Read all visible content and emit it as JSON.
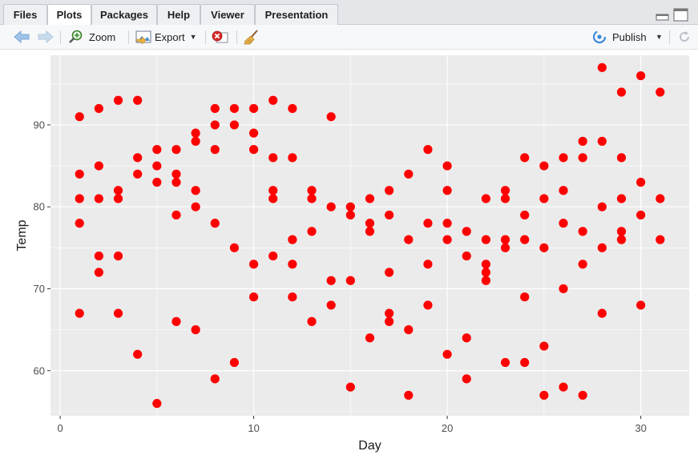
{
  "tabs": [
    {
      "label": "Files"
    },
    {
      "label": "Plots"
    },
    {
      "label": "Packages"
    },
    {
      "label": "Help"
    },
    {
      "label": "Viewer"
    },
    {
      "label": "Presentation"
    }
  ],
  "active_tab": "Plots",
  "toolbar": {
    "zoom_label": "Zoom",
    "export_label": "Export",
    "publish_label": "Publish"
  },
  "colors": {
    "point": "#ff0000",
    "panel": "#ebebeb",
    "grid": "#ffffff",
    "text": "#1a1a1a",
    "tick_text": "#4d4d4d"
  },
  "chart_data": {
    "type": "scatter",
    "xlabel": "Day",
    "ylabel": "Temp",
    "xlim": [
      -0.5,
      32.5
    ],
    "ylim": [
      54.5,
      98.5
    ],
    "x_ticks": [
      0,
      10,
      20,
      30
    ],
    "y_ticks": [
      60,
      70,
      80,
      90
    ],
    "grid": true,
    "legend": "none",
    "points": [
      [
        1,
        91
      ],
      [
        1,
        84
      ],
      [
        1,
        81
      ],
      [
        1,
        78
      ],
      [
        1,
        67
      ],
      [
        2,
        92
      ],
      [
        2,
        85
      ],
      [
        2,
        81
      ],
      [
        2,
        74
      ],
      [
        2,
        72
      ],
      [
        3,
        93
      ],
      [
        3,
        82
      ],
      [
        3,
        81
      ],
      [
        3,
        74
      ],
      [
        3,
        67
      ],
      [
        4,
        93
      ],
      [
        4,
        86
      ],
      [
        4,
        84
      ],
      [
        4,
        62
      ],
      [
        5,
        87
      ],
      [
        5,
        85
      ],
      [
        5,
        83
      ],
      [
        5,
        56
      ],
      [
        6,
        87
      ],
      [
        6,
        84
      ],
      [
        6,
        83
      ],
      [
        6,
        79
      ],
      [
        6,
        66
      ],
      [
        7,
        89
      ],
      [
        7,
        88
      ],
      [
        7,
        82
      ],
      [
        7,
        80
      ],
      [
        7,
        65
      ],
      [
        8,
        92
      ],
      [
        8,
        90
      ],
      [
        8,
        87
      ],
      [
        8,
        78
      ],
      [
        8,
        59
      ],
      [
        9,
        92
      ],
      [
        9,
        90
      ],
      [
        9,
        75
      ],
      [
        9,
        61
      ],
      [
        10,
        92
      ],
      [
        10,
        89
      ],
      [
        10,
        87
      ],
      [
        10,
        73
      ],
      [
        10,
        69
      ],
      [
        11,
        93
      ],
      [
        11,
        86
      ],
      [
        11,
        82
      ],
      [
        11,
        81
      ],
      [
        11,
        74
      ],
      [
        12,
        92
      ],
      [
        12,
        86
      ],
      [
        12,
        76
      ],
      [
        12,
        73
      ],
      [
        12,
        69
      ],
      [
        13,
        82
      ],
      [
        13,
        81
      ],
      [
        13,
        77
      ],
      [
        13,
        66
      ],
      [
        14,
        91
      ],
      [
        14,
        80
      ],
      [
        14,
        71
      ],
      [
        14,
        68
      ],
      [
        15,
        80
      ],
      [
        15,
        79
      ],
      [
        15,
        71
      ],
      [
        15,
        58
      ],
      [
        16,
        81
      ],
      [
        16,
        78
      ],
      [
        16,
        77
      ],
      [
        16,
        64
      ],
      [
        17,
        82
      ],
      [
        17,
        79
      ],
      [
        17,
        72
      ],
      [
        17,
        67
      ],
      [
        17,
        66
      ],
      [
        18,
        84
      ],
      [
        18,
        76
      ],
      [
        18,
        65
      ],
      [
        18,
        57
      ],
      [
        19,
        87
      ],
      [
        19,
        78
      ],
      [
        19,
        73
      ],
      [
        19,
        68
      ],
      [
        20,
        85
      ],
      [
        20,
        82
      ],
      [
        20,
        78
      ],
      [
        20,
        76
      ],
      [
        20,
        62
      ],
      [
        21,
        77
      ],
      [
        21,
        74
      ],
      [
        21,
        64
      ],
      [
        21,
        59
      ],
      [
        22,
        81
      ],
      [
        22,
        76
      ],
      [
        22,
        73
      ],
      [
        22,
        72
      ],
      [
        22,
        71
      ],
      [
        23,
        82
      ],
      [
        23,
        81
      ],
      [
        23,
        76
      ],
      [
        23,
        75
      ],
      [
        23,
        61
      ],
      [
        24,
        86
      ],
      [
        24,
        79
      ],
      [
        24,
        76
      ],
      [
        24,
        69
      ],
      [
        24,
        61
      ],
      [
        25,
        85
      ],
      [
        25,
        81
      ],
      [
        25,
        75
      ],
      [
        25,
        63
      ],
      [
        25,
        57
      ],
      [
        26,
        86
      ],
      [
        26,
        82
      ],
      [
        26,
        78
      ],
      [
        26,
        70
      ],
      [
        26,
        58
      ],
      [
        27,
        88
      ],
      [
        27,
        86
      ],
      [
        27,
        77
      ],
      [
        27,
        73
      ],
      [
        27,
        57
      ],
      [
        28,
        97
      ],
      [
        28,
        88
      ],
      [
        28,
        80
      ],
      [
        28,
        75
      ],
      [
        28,
        67
      ],
      [
        29,
        94
      ],
      [
        29,
        86
      ],
      [
        29,
        81
      ],
      [
        29,
        77
      ],
      [
        29,
        76
      ],
      [
        30,
        96
      ],
      [
        30,
        83
      ],
      [
        30,
        79
      ],
      [
        30,
        68
      ],
      [
        31,
        94
      ],
      [
        31,
        81
      ],
      [
        31,
        76
      ]
    ]
  }
}
